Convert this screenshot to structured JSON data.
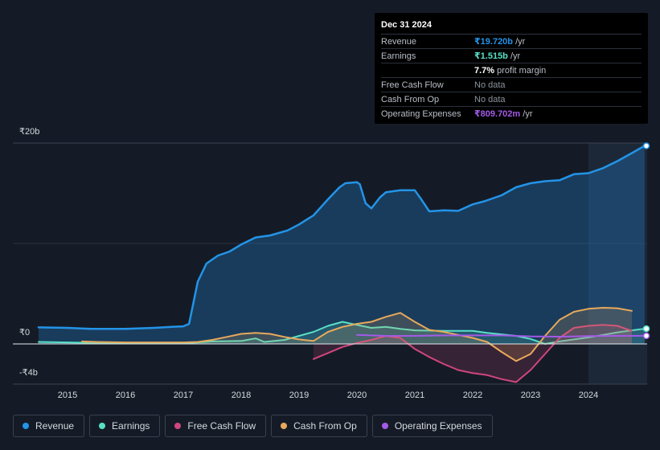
{
  "chart_data": {
    "type": "area",
    "currency_unit": "₹",
    "y_ticks": [
      {
        "value": 20,
        "label": "₹20b"
      },
      {
        "value": 0,
        "label": "₹0"
      },
      {
        "value": -4,
        "label": "-₹4b"
      }
    ],
    "ylim": [
      -4,
      20
    ],
    "xlim": [
      2014.5,
      2025.0
    ],
    "x_ticks": [
      "2015",
      "2016",
      "2017",
      "2018",
      "2019",
      "2020",
      "2021",
      "2022",
      "2023",
      "2024"
    ],
    "highlight_from": 2024.0,
    "series": [
      {
        "name": "Revenue",
        "color": "#2394e8",
        "fill": true,
        "points": [
          [
            2014.5,
            1.65
          ],
          [
            2015.0,
            1.6
          ],
          [
            2015.4,
            1.5
          ],
          [
            2016.0,
            1.5
          ],
          [
            2016.5,
            1.6
          ],
          [
            2016.8,
            1.7
          ],
          [
            2017.0,
            1.75
          ],
          [
            2017.1,
            2.0
          ],
          [
            2017.25,
            6.2
          ],
          [
            2017.4,
            8.0
          ],
          [
            2017.6,
            8.8
          ],
          [
            2017.8,
            9.2
          ],
          [
            2018.0,
            9.9
          ],
          [
            2018.25,
            10.6
          ],
          [
            2018.5,
            10.8
          ],
          [
            2018.8,
            11.3
          ],
          [
            2019.0,
            11.9
          ],
          [
            2019.25,
            12.8
          ],
          [
            2019.5,
            14.4
          ],
          [
            2019.7,
            15.6
          ],
          [
            2019.8,
            16.0
          ],
          [
            2020.0,
            16.1
          ],
          [
            2020.05,
            15.9
          ],
          [
            2020.15,
            14.0
          ],
          [
            2020.25,
            13.5
          ],
          [
            2020.4,
            14.6
          ],
          [
            2020.5,
            15.1
          ],
          [
            2020.75,
            15.3
          ],
          [
            2021.0,
            15.3
          ],
          [
            2021.1,
            14.5
          ],
          [
            2021.25,
            13.2
          ],
          [
            2021.5,
            13.3
          ],
          [
            2021.75,
            13.25
          ],
          [
            2022.0,
            13.9
          ],
          [
            2022.2,
            14.2
          ],
          [
            2022.5,
            14.8
          ],
          [
            2022.75,
            15.6
          ],
          [
            2023.0,
            16.0
          ],
          [
            2023.25,
            16.2
          ],
          [
            2023.5,
            16.3
          ],
          [
            2023.75,
            16.9
          ],
          [
            2024.0,
            17.0
          ],
          [
            2024.25,
            17.5
          ],
          [
            2024.5,
            18.2
          ],
          [
            2024.75,
            19.0
          ],
          [
            2024.97,
            19.72
          ]
        ]
      },
      {
        "name": "Earnings",
        "color": "#58e0c5",
        "fill": true,
        "points": [
          [
            2014.5,
            0.2
          ],
          [
            2015.0,
            0.15
          ],
          [
            2015.5,
            0.1
          ],
          [
            2016.0,
            0.05
          ],
          [
            2016.5,
            0.05
          ],
          [
            2017.0,
            0.05
          ],
          [
            2017.5,
            0.25
          ],
          [
            2018.0,
            0.3
          ],
          [
            2018.25,
            0.55
          ],
          [
            2018.4,
            0.2
          ],
          [
            2018.75,
            0.4
          ],
          [
            2019.0,
            0.8
          ],
          [
            2019.25,
            1.2
          ],
          [
            2019.5,
            1.8
          ],
          [
            2019.75,
            2.2
          ],
          [
            2020.0,
            1.9
          ],
          [
            2020.25,
            1.6
          ],
          [
            2020.5,
            1.7
          ],
          [
            2020.75,
            1.5
          ],
          [
            2021.0,
            1.35
          ],
          [
            2021.5,
            1.3
          ],
          [
            2022.0,
            1.3
          ],
          [
            2022.25,
            1.1
          ],
          [
            2022.5,
            0.95
          ],
          [
            2022.75,
            0.8
          ],
          [
            2023.0,
            0.5
          ],
          [
            2023.25,
            0.0
          ],
          [
            2023.5,
            0.25
          ],
          [
            2023.75,
            0.45
          ],
          [
            2024.0,
            0.65
          ],
          [
            2024.25,
            0.9
          ],
          [
            2024.5,
            1.15
          ],
          [
            2024.75,
            1.35
          ],
          [
            2024.97,
            1.515
          ]
        ]
      },
      {
        "name": "Free Cash Flow",
        "color": "#d0467e",
        "fill": true,
        "points": [
          [
            2019.25,
            -1.5
          ],
          [
            2019.5,
            -0.9
          ],
          [
            2019.75,
            -0.3
          ],
          [
            2020.0,
            0.1
          ],
          [
            2020.25,
            0.4
          ],
          [
            2020.5,
            0.8
          ],
          [
            2020.75,
            0.6
          ],
          [
            2021.0,
            -0.5
          ],
          [
            2021.25,
            -1.3
          ],
          [
            2021.5,
            -2.0
          ],
          [
            2021.75,
            -2.6
          ],
          [
            2022.0,
            -2.9
          ],
          [
            2022.25,
            -3.1
          ],
          [
            2022.5,
            -3.5
          ],
          [
            2022.75,
            -3.8
          ],
          [
            2023.0,
            -2.6
          ],
          [
            2023.25,
            -1.0
          ],
          [
            2023.5,
            0.6
          ],
          [
            2023.75,
            1.6
          ],
          [
            2024.0,
            1.8
          ],
          [
            2024.25,
            1.9
          ],
          [
            2024.5,
            1.8
          ],
          [
            2024.75,
            1.3
          ]
        ]
      },
      {
        "name": "Cash From Op",
        "color": "#e8a95b",
        "fill": true,
        "points": [
          [
            2015.25,
            0.25
          ],
          [
            2015.5,
            0.2
          ],
          [
            2016.0,
            0.15
          ],
          [
            2016.5,
            0.15
          ],
          [
            2017.0,
            0.15
          ],
          [
            2017.25,
            0.2
          ],
          [
            2017.5,
            0.4
          ],
          [
            2017.75,
            0.7
          ],
          [
            2018.0,
            1.0
          ],
          [
            2018.25,
            1.1
          ],
          [
            2018.5,
            1.0
          ],
          [
            2018.75,
            0.7
          ],
          [
            2019.0,
            0.45
          ],
          [
            2019.25,
            0.3
          ],
          [
            2019.5,
            1.2
          ],
          [
            2019.75,
            1.7
          ],
          [
            2020.0,
            2.0
          ],
          [
            2020.25,
            2.2
          ],
          [
            2020.5,
            2.7
          ],
          [
            2020.75,
            3.1
          ],
          [
            2021.0,
            2.2
          ],
          [
            2021.25,
            1.4
          ],
          [
            2021.5,
            1.2
          ],
          [
            2021.75,
            0.9
          ],
          [
            2022.0,
            0.6
          ],
          [
            2022.25,
            0.2
          ],
          [
            2022.5,
            -0.8
          ],
          [
            2022.75,
            -1.7
          ],
          [
            2023.0,
            -1.0
          ],
          [
            2023.25,
            0.8
          ],
          [
            2023.5,
            2.4
          ],
          [
            2023.75,
            3.2
          ],
          [
            2024.0,
            3.5
          ],
          [
            2024.25,
            3.6
          ],
          [
            2024.5,
            3.55
          ],
          [
            2024.75,
            3.3
          ]
        ]
      },
      {
        "name": "Operating Expenses",
        "color": "#a45ae8",
        "fill": false,
        "points": [
          [
            2020.0,
            0.9
          ],
          [
            2020.5,
            0.8
          ],
          [
            2021.0,
            0.8
          ],
          [
            2021.5,
            0.85
          ],
          [
            2022.0,
            0.85
          ],
          [
            2022.5,
            0.85
          ],
          [
            2023.0,
            0.75
          ],
          [
            2023.5,
            0.72
          ],
          [
            2024.0,
            0.78
          ],
          [
            2024.5,
            0.8
          ],
          [
            2024.97,
            0.81
          ]
        ]
      }
    ]
  },
  "tooltip": {
    "date": "Dec 31 2024",
    "rows": [
      {
        "label": "Revenue",
        "value": "₹19.720b",
        "suffix": " /yr",
        "color": "#2394e8"
      },
      {
        "label": "Earnings",
        "value": "₹1.515b",
        "suffix": " /yr",
        "color": "#58e0c5"
      },
      {
        "label": "",
        "value": "7.7%",
        "suffix": " profit margin",
        "color": "#ffffff"
      },
      {
        "label": "Free Cash Flow",
        "value": "",
        "suffix": "No data",
        "color": "#8d939c"
      },
      {
        "label": "Cash From Op",
        "value": "",
        "suffix": "No data",
        "color": "#8d939c"
      },
      {
        "label": "Operating Expenses",
        "value": "₹809.702m",
        "suffix": " /yr",
        "color": "#a45ae8"
      }
    ]
  },
  "legend": [
    {
      "label": "Revenue",
      "color": "#2394e8"
    },
    {
      "label": "Earnings",
      "color": "#58e0c5"
    },
    {
      "label": "Free Cash Flow",
      "color": "#d0467e"
    },
    {
      "label": "Cash From Op",
      "color": "#e8a95b"
    },
    {
      "label": "Operating Expenses",
      "color": "#a45ae8"
    }
  ]
}
